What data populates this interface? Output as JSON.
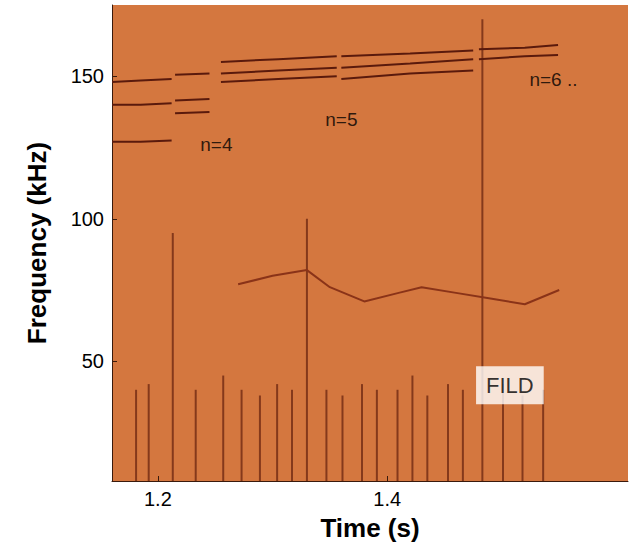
{
  "chart_data": {
    "type": "line",
    "y_label": "Frequency (kHz)",
    "x_label": "Time (s)",
    "xlim": [
      1.16,
      1.61
    ],
    "xticks": [
      1.2,
      1.4
    ],
    "ylim": [
      8,
      175
    ],
    "yticks": [
      50,
      100,
      150
    ],
    "grid": false,
    "series": [
      {
        "type": "line",
        "color": "#5a1a0c",
        "line_style": "solid",
        "x": [
          1.16,
          1.185,
          1.212
        ],
        "values": [
          148,
          148.5,
          149
        ]
      },
      {
        "type": "line",
        "color": "#5a1a0c",
        "line_style": "solid",
        "x": [
          1.16,
          1.185,
          1.212
        ],
        "values": [
          140,
          140,
          140.5
        ]
      },
      {
        "type": "line",
        "color": "#5a1a0c",
        "line_style": "solid",
        "x": [
          1.16,
          1.185,
          1.212
        ],
        "values": [
          127,
          127,
          127.5
        ]
      },
      {
        "type": "line",
        "color": "#5a1a0c",
        "line_style": "solid",
        "x": [
          1.215,
          1.245
        ],
        "values": [
          150.5,
          151
        ]
      },
      {
        "type": "line",
        "color": "#5a1a0c",
        "line_style": "solid",
        "x": [
          1.215,
          1.245
        ],
        "values": [
          141.5,
          142
        ]
      },
      {
        "type": "line",
        "color": "#5a1a0c",
        "line_style": "solid",
        "x": [
          1.215,
          1.245
        ],
        "values": [
          137,
          137.5
        ]
      },
      {
        "type": "line",
        "color": "#5a1a0c",
        "line_style": "solid",
        "x": [
          1.255,
          1.305,
          1.356
        ],
        "values": [
          155,
          156,
          157
        ]
      },
      {
        "type": "line",
        "color": "#5a1a0c",
        "line_style": "solid",
        "x": [
          1.255,
          1.305,
          1.356
        ],
        "values": [
          151,
          152,
          153
        ]
      },
      {
        "type": "line",
        "color": "#5a1a0c",
        "line_style": "solid",
        "x": [
          1.255,
          1.305,
          1.356
        ],
        "values": [
          148,
          149,
          150
        ]
      },
      {
        "type": "line",
        "color": "#5a1a0c",
        "line_style": "solid",
        "x": [
          1.36,
          1.42,
          1.475
        ],
        "values": [
          157,
          158,
          159
        ]
      },
      {
        "type": "line",
        "color": "#5a1a0c",
        "line_style": "solid",
        "x": [
          1.36,
          1.42,
          1.475
        ],
        "values": [
          153,
          154.5,
          156
        ]
      },
      {
        "type": "line",
        "color": "#5a1a0c",
        "line_style": "solid",
        "x": [
          1.36,
          1.42,
          1.475
        ],
        "values": [
          149,
          151,
          152
        ]
      },
      {
        "type": "line",
        "color": "#5a1a0c",
        "line_style": "solid",
        "x": [
          1.48,
          1.52,
          1.549
        ],
        "values": [
          159.5,
          160,
          161
        ]
      },
      {
        "type": "line",
        "color": "#5a1a0c",
        "line_style": "solid",
        "x": [
          1.48,
          1.52,
          1.549
        ],
        "values": [
          156,
          157,
          157.5
        ]
      },
      {
        "type": "line",
        "color": "#8a3318",
        "line_style": "solid",
        "x": [
          1.27,
          1.3,
          1.33,
          1.35,
          1.38,
          1.41,
          1.43,
          1.46,
          1.49,
          1.52,
          1.55
        ],
        "values": [
          77,
          80,
          82,
          76,
          71,
          74,
          76,
          74,
          72,
          70,
          75
        ]
      },
      {
        "type": "bar",
        "color": "#6a2410",
        "x": [
          1.181,
          1.192,
          1.213,
          1.233,
          1.257,
          1.273,
          1.289,
          1.304,
          1.317,
          1.33,
          1.347,
          1.361,
          1.378,
          1.391,
          1.409,
          1.422,
          1.435,
          1.453,
          1.466,
          1.483,
          1.501,
          1.518,
          1.536
        ],
        "values": [
          40,
          42,
          95,
          40,
          45,
          40,
          38,
          42,
          40,
          100,
          40,
          38,
          42,
          40,
          40,
          45,
          38,
          42,
          40,
          170,
          42,
          38,
          40
        ]
      }
    ],
    "annotations": [
      {
        "text": "n=4",
        "x": 1.251,
        "y": 126
      },
      {
        "text": "n=5",
        "x": 1.36,
        "y": 135
      },
      {
        "text": "n=6 ..",
        "x": 1.545,
        "y": 149
      },
      {
        "text": "FILD",
        "x": 1.507,
        "y": 41.6,
        "marker": "box"
      }
    ]
  }
}
